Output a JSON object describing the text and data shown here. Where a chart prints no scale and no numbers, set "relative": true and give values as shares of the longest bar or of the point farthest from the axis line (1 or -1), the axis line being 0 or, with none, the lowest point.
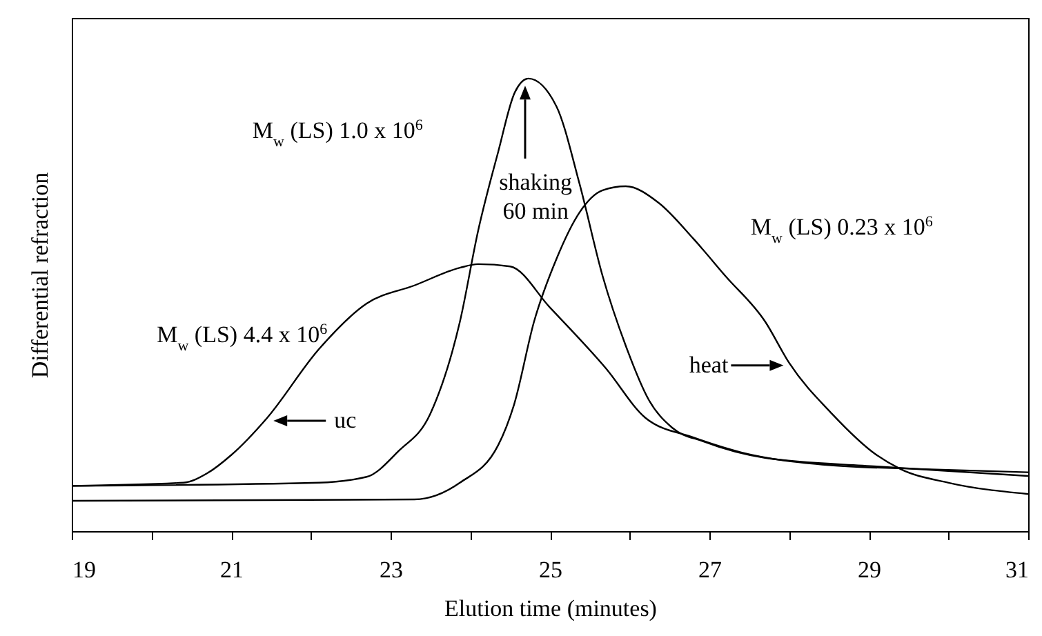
{
  "chart_data": {
    "type": "line",
    "xlabel": "Elution time (minutes)",
    "ylabel": "Differential refraction",
    "relative": true,
    "xlim": [
      19,
      31
    ],
    "xticks": [
      19,
      {
        "value": 20,
        "label": null
      },
      21,
      {
        "value": 22,
        "label": null
      },
      23,
      {
        "value": 24,
        "label": null
      },
      25,
      {
        "value": 26,
        "label": null
      },
      27,
      {
        "value": 28,
        "label": null
      },
      29,
      {
        "value": 30,
        "label": null
      },
      31
    ],
    "line_style": "solid",
    "marker": "none",
    "series": [
      {
        "color": "#000000",
        "x": [
          19,
          20.4,
          20.7,
          21.0,
          21.45,
          22.1,
          22.7,
          23.3,
          23.87,
          24.1,
          24.5,
          25.0,
          25.7,
          26.2,
          26.8,
          27.4,
          28.5,
          29.7,
          31
        ],
        "values": [
          0.1,
          0.107,
          0.128,
          0.168,
          0.25,
          0.402,
          0.503,
          0.543,
          0.582,
          0.59,
          0.585,
          0.494,
          0.36,
          0.25,
          0.207,
          0.174,
          0.146,
          0.137,
          0.13
        ]
      },
      {
        "color": "#000000",
        "x": [
          19,
          22.1,
          22.7,
          23.1,
          23.5,
          23.87,
          24.1,
          24.35,
          24.56,
          24.73,
          25.08,
          25.37,
          25.66,
          25.95,
          26.24,
          26.53,
          26.93,
          27.7,
          29.1,
          31
        ],
        "values": [
          0.1,
          0.107,
          0.12,
          0.177,
          0.26,
          0.463,
          0.665,
          0.838,
          0.97,
          1,
          0.939,
          0.768,
          0.564,
          0.41,
          0.29,
          0.229,
          0.198,
          0.162,
          0.143,
          0.122
        ]
      },
      {
        "color": "#000000",
        "x": [
          19,
          23.3,
          23.87,
          24.35,
          24.55,
          24.8,
          25.08,
          25.37,
          25.66,
          25.95,
          26.36,
          26.8,
          27.2,
          27.7,
          28.0,
          28.54,
          29.1,
          29.4,
          30.0,
          31
        ],
        "values": [
          0.067,
          0.07,
          0.107,
          0.19,
          0.28,
          0.463,
          0.601,
          0.704,
          0.753,
          0.762,
          0.726,
          0.646,
          0.564,
          0.463,
          0.372,
          0.259,
          0.168,
          0.137,
          0.107,
          0.082
        ]
      }
    ],
    "annotations": [
      "M$_{w}$ (LS) 4.4 x 10$^{6}$",
      "M$_{w}$ (LS) 1.0 x 10$^{6}$",
      "M$_{w}$ (LS) 0.23 x 10$^{6}$",
      {
        "text": "uc",
        "x": 21.53,
        "y": 0.244
      },
      "shaking\n60 min",
      {
        "text": "heat",
        "x": 27.93,
        "y": 0.366
      }
    ]
  }
}
